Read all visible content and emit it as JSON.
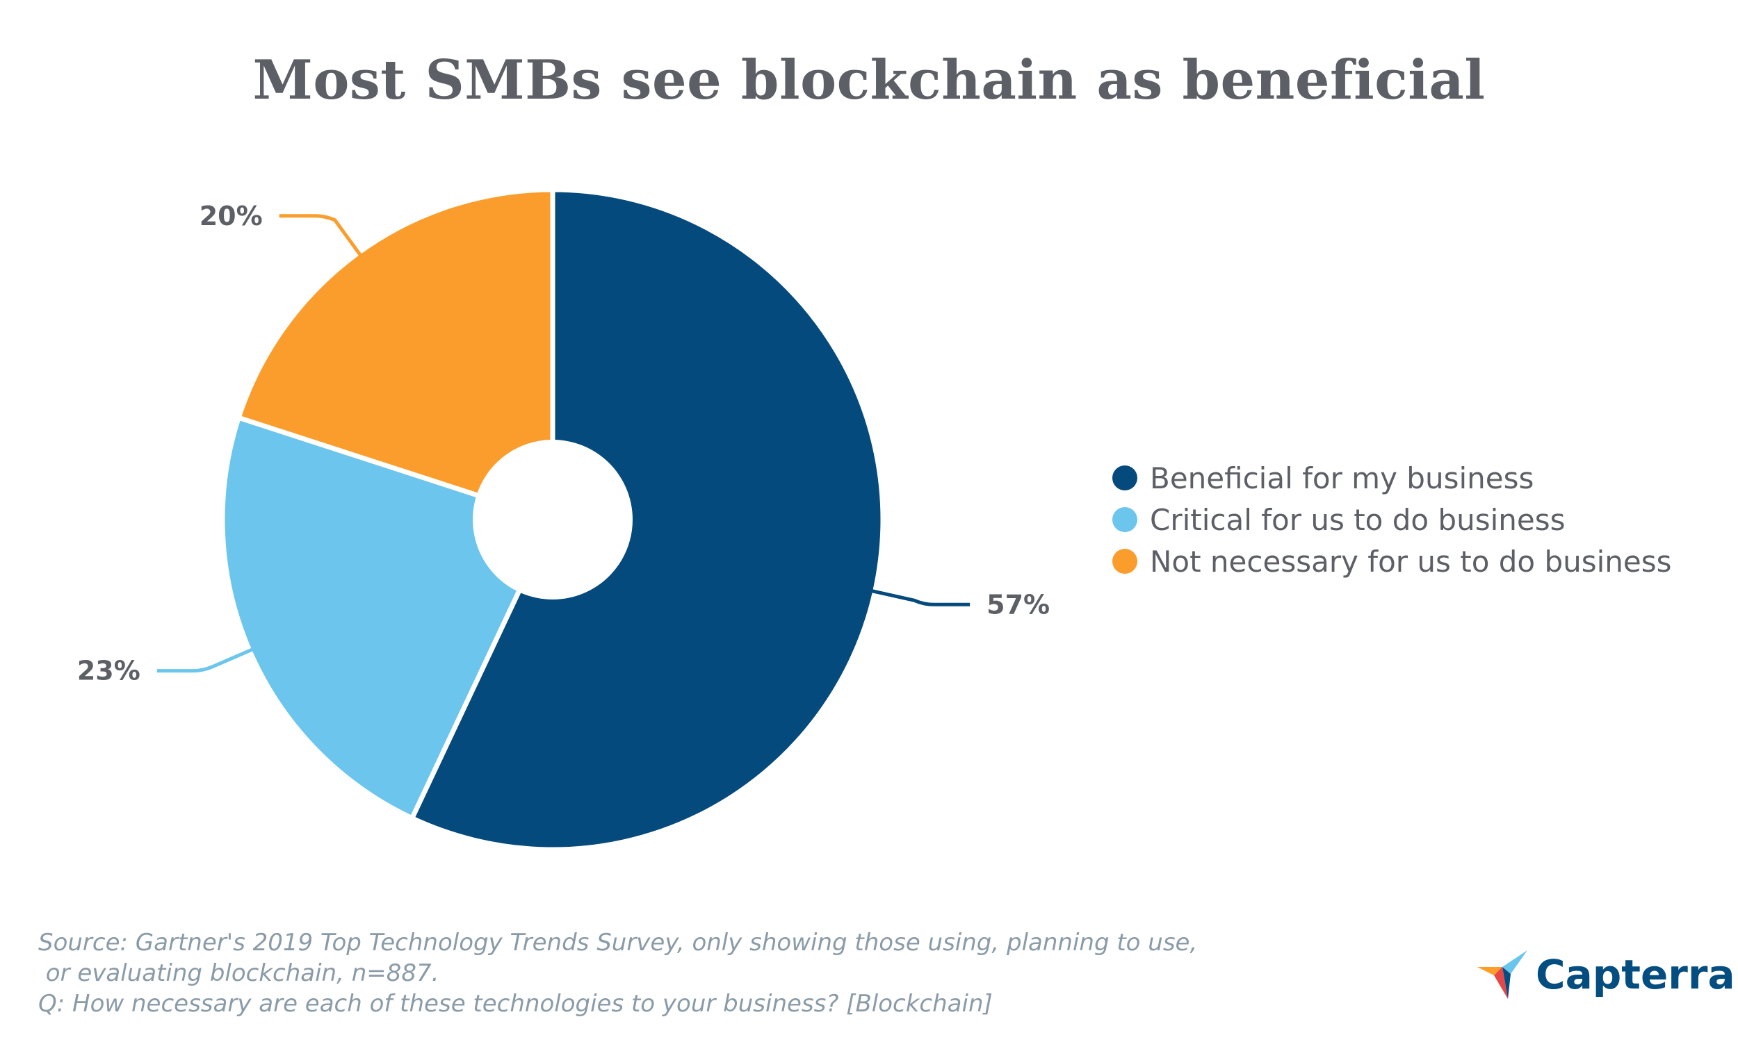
{
  "title": "Most SMBs see blockchain as beneficial",
  "chart_data": {
    "type": "pie",
    "title": "Most SMBs see blockchain as beneficial",
    "categories": [
      "Beneficial for my business",
      "Critical for us to do business",
      "Not necessary for us to do business"
    ],
    "values": [
      57,
      23,
      20
    ],
    "value_labels": [
      "57%",
      "23%",
      "20%"
    ],
    "colors": [
      "#054a7c",
      "#6bc5ed",
      "#fa9d2c"
    ],
    "unit": "%",
    "legend_position": "right",
    "donut_hole": true
  },
  "source_lines": [
    "Source: Gartner's 2019 Top Technology Trends Survey, only showing those using, planning to use,",
    " or evaluating blockchain, n=887.",
    "Q: How necessary are each of these technologies to your business? [Blockchain]"
  ],
  "brand": {
    "name": "Capterra",
    "logo_icon": "capterra-arrow-icon",
    "colors": [
      "#ff9d28",
      "#68c5ed",
      "#044d80",
      "#e54747"
    ]
  }
}
